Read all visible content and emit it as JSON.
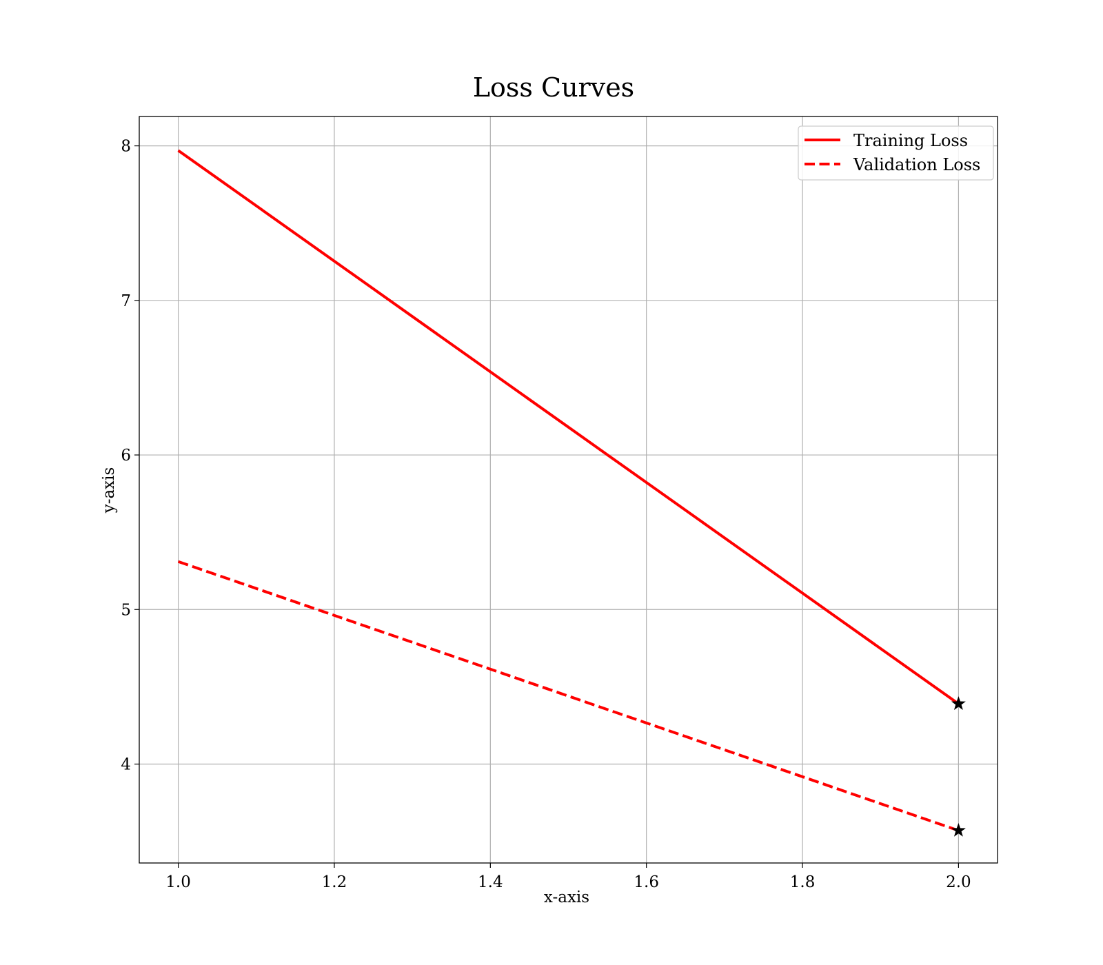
{
  "chart_data": {
    "type": "line",
    "title": "Loss Curves",
    "xlabel": "x-axis",
    "ylabel": "y-axis",
    "xlim": [
      0.95,
      2.05
    ],
    "ylim": [
      3.36,
      8.19
    ],
    "xticks": [
      1.0,
      1.2,
      1.4,
      1.6,
      1.8,
      2.0
    ],
    "xtick_labels": [
      "1.0",
      "1.2",
      "1.4",
      "1.6",
      "1.8",
      "2.0"
    ],
    "yticks": [
      4,
      5,
      6,
      7,
      8
    ],
    "ytick_labels": [
      "4",
      "5",
      "6",
      "7",
      "8"
    ],
    "grid": true,
    "legend_position": "top-right",
    "series": [
      {
        "name": "Training Loss",
        "x": [
          1.0,
          2.0
        ],
        "y": [
          7.97,
          4.39
        ],
        "color": "#ff0000",
        "style": "solid",
        "end_marker": "star"
      },
      {
        "name": "Validation Loss",
        "x": [
          1.0,
          2.0
        ],
        "y": [
          5.31,
          3.57
        ],
        "color": "#ff0000",
        "style": "dashed",
        "end_marker": "star"
      }
    ]
  }
}
